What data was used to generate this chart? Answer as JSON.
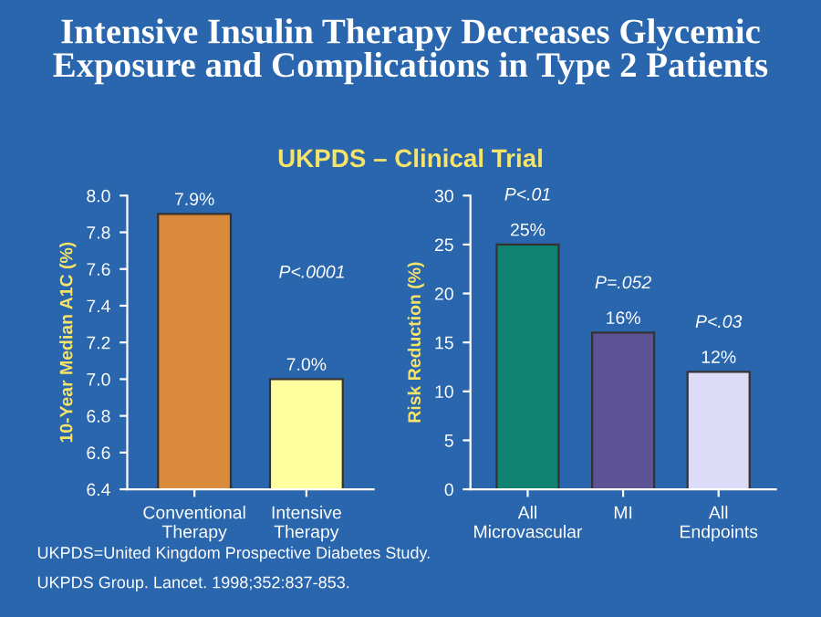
{
  "chart_data": [
    {
      "type": "bar",
      "title": "Intensive Insulin Therapy Decreases Glycemic\nExposure and Complications in Type 2 Patients",
      "subtitle": "UKPDS – Clinical Trial",
      "ylabel": "10-Year Median A1C (%)",
      "categories": [
        "Conventional\nTherapy",
        "Intensive\nTherapy"
      ],
      "values": [
        7.9,
        7.0
      ],
      "colors": [
        "#d98a3a",
        "#ffffa0"
      ],
      "value_labels": [
        "7.9%",
        "7.0%"
      ],
      "ylim": [
        6.4,
        8.0
      ],
      "yticks": [
        6.4,
        6.6,
        6.8,
        {
          "value": 7,
          "label": "7.0"
        },
        7.2,
        7.4,
        7.6,
        7.8,
        {
          "value": 8,
          "label": "8.0"
        }
      ],
      "annotations": [
        "P<.0001",
        "UKPDS=United Kingdom Prospective Diabetes Study.",
        "UKPDS Group. Lancet. 1998;352:837-853."
      ]
    },
    {
      "type": "bar",
      "ylabel": "Risk Reduction (%)",
      "categories": [
        "All\nMicrovascular",
        "MI",
        "All\nEndpoints"
      ],
      "values": [
        25,
        16,
        12
      ],
      "colors": [
        "#0f8272",
        "#5c5294",
        "#dcdcf8"
      ],
      "value_labels": [
        "25%",
        "16%",
        "12%"
      ],
      "ylim": [
        0,
        30
      ],
      "yticks": [
        0,
        5,
        10,
        15,
        20,
        25,
        30
      ],
      "annotations": [
        "P<.01",
        "P=.052",
        "P<.03"
      ]
    }
  ]
}
